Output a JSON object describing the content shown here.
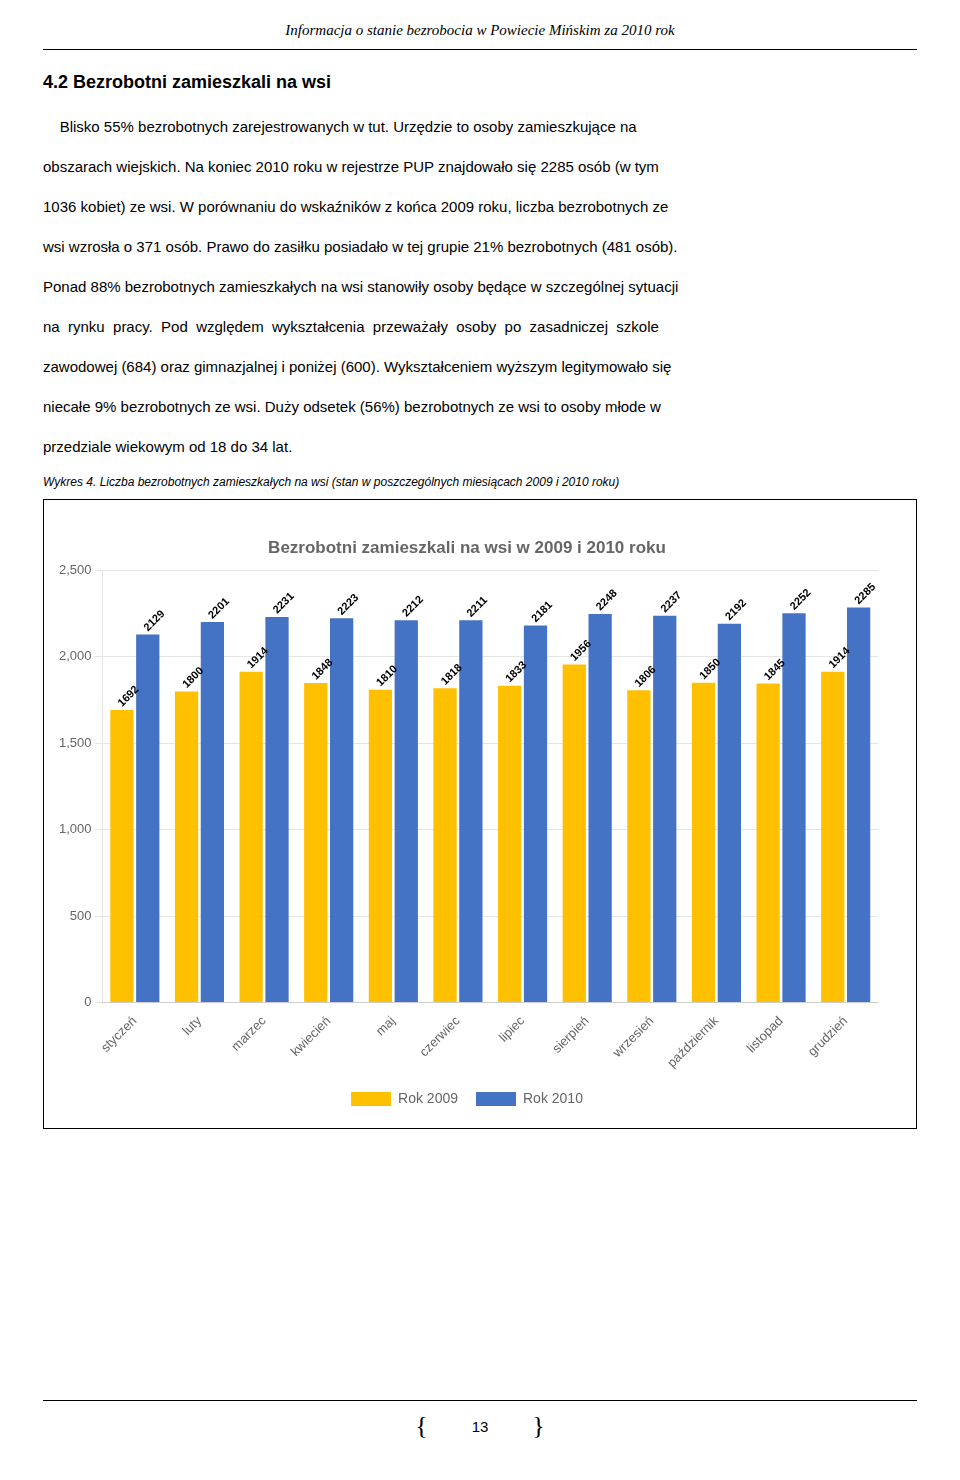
{
  "page_title": "Informacja o stanie bezrobocia w Powiecie Mińskim za 2010 rok",
  "section_title": "4.2 Bezrobotni zamieszkali na wsi",
  "body_lines": [
    "    Blisko 55% bezrobotnych zarejestrowanych w tut. Urzędzie to osoby zamieszkujące na",
    "obszarach wiejskich. Na koniec 2010 roku w rejestrze PUP znajdowało się 2285 osób (w tym",
    "1036 kobiet) ze wsi. W porównaniu do wskaźników z końca 2009 roku, liczba bezrobotnych ze",
    "wsi wzrosła o 371 osób. Prawo do zasiłku posiadało w tej grupie 21% bezrobotnych (481 osób).",
    "Ponad 88% bezrobotnych zamieszkałych na wsi stanowiły osoby będące w szczególnej sytuacji",
    "na  rynku  pracy.  Pod  względem  wykształcenia  przeważały  osoby  po  zasadniczej  szkole",
    "zawodowej (684) oraz gimnazjalnej i poniżej (600). Wykształceniem wyższym legitymowało się",
    "niecałe 9% bezrobotnych ze wsi. Duży odsetek (56%) bezrobotnych ze wsi to osoby młode w",
    "przedziale wiekowym od 18 do 34 lat."
  ],
  "caption": "Wykres 4. Liczba bezrobotnych zamieszkałych na wsi (stan w  poszczególnych miesiącach 2009 i 2010 roku)",
  "footer": [
    "{",
    "13",
    "}"
  ],
  "chart_data": {
    "type": "bar",
    "title": "Bezrobotni zamieszkali na wsi w 2009 i 2010 roku",
    "categories": [
      "styczeń",
      "luty",
      "marzec",
      "kwiecień",
      "maj",
      "czerwiec",
      "lipiec",
      "sierpień",
      "wrzesień",
      "październik",
      "listopad",
      "grudzień"
    ],
    "series": [
      {
        "name": "Rok 2009",
        "color": "#FFC000",
        "values": [
          1692,
          1800,
          1914,
          1848,
          1810,
          1818,
          1833,
          1956,
          1806,
          1850,
          1845,
          1914
        ]
      },
      {
        "name": "Rok 2010",
        "color": "#4472C4",
        "values": [
          2129,
          2201,
          2231,
          2223,
          2212,
          2211,
          2181,
          2248,
          2237,
          2192,
          2252,
          2285
        ]
      }
    ],
    "ylim": [
      0,
      2500
    ],
    "yticks": [
      0,
      500,
      1000,
      1500,
      2000,
      2500
    ],
    "grid": true,
    "legend": "bottom",
    "data_labels": true
  }
}
